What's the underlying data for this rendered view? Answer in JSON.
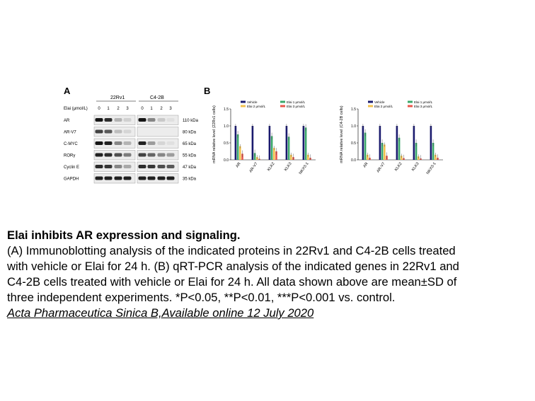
{
  "figure": {
    "panel_a": {
      "label": "A",
      "cell_lines": [
        "22Rv1",
        "C4-2B"
      ],
      "dose_header": "Elai (μmol/L)",
      "doses": [
        "0",
        "1",
        "2",
        "3"
      ],
      "proteins": [
        "AR",
        "AR-V7",
        "C-MYC",
        "RORγ",
        "Cyclin E",
        "GAPDH"
      ],
      "sizes": [
        "110 kDa",
        "80 kDa",
        "65 kDa",
        "55 kDa",
        "47 kDa",
        "35 kDa"
      ],
      "band_intensity_22rv1": [
        [
          0.95,
          0.85,
          0.25,
          0.12
        ],
        [
          0.75,
          0.65,
          0.2,
          0.1
        ],
        [
          0.95,
          0.9,
          0.45,
          0.25
        ],
        [
          0.9,
          0.85,
          0.7,
          0.5
        ],
        [
          0.85,
          0.8,
          0.45,
          0.3
        ],
        [
          0.9,
          0.9,
          0.9,
          0.9
        ]
      ],
      "band_intensity_c42b": [
        [
          0.95,
          0.45,
          0.15,
          0.05
        ],
        [
          0.0,
          0.0,
          0.0,
          0.0
        ],
        [
          0.9,
          0.35,
          0.1,
          0.05
        ],
        [
          0.75,
          0.6,
          0.45,
          0.35
        ],
        [
          0.85,
          0.8,
          0.7,
          0.65
        ],
        [
          0.9,
          0.9,
          0.9,
          0.9
        ]
      ]
    },
    "panel_b": {
      "label": "B",
      "legend": [
        "Vehicle",
        "Elai 1 μmol/L",
        "Elai 2 μmol/L",
        "Elai 3 μmol/L"
      ],
      "colors": [
        "#1a1a6e",
        "#3aa86a",
        "#f2c14e",
        "#e8564a"
      ]
    }
  },
  "chart_data": [
    {
      "type": "bar",
      "ylabel": "mRNA relative level (22Rv1 cells)",
      "ylim": [
        0,
        1.5
      ],
      "yticks": [
        "0.0",
        "0.5",
        "1.0",
        "1.5"
      ],
      "categories": [
        "AR",
        "AR-V7",
        "KLK2",
        "KLK3",
        "NKX3-1"
      ],
      "series": [
        {
          "name": "Vehicle",
          "values": [
            1.0,
            1.0,
            1.0,
            1.0,
            1.0
          ]
        },
        {
          "name": "Elai 1 μmol/L",
          "values": [
            0.75,
            0.2,
            0.7,
            0.68,
            0.95
          ]
        },
        {
          "name": "Elai 2 μmol/L",
          "values": [
            0.4,
            0.08,
            0.35,
            0.15,
            0.15
          ]
        },
        {
          "name": "Elai 3 μmol/L",
          "values": [
            0.18,
            0.03,
            0.25,
            0.08,
            0.06
          ]
        }
      ]
    },
    {
      "type": "bar",
      "ylabel": "mRNA relative level (C4-2B cells)",
      "ylim": [
        0,
        1.5
      ],
      "yticks": [
        "0.0",
        "0.5",
        "1.0",
        "1.5"
      ],
      "categories": [
        "AR",
        "AR-V7",
        "KLK2",
        "KLK3",
        "NKX3-1"
      ],
      "series": [
        {
          "name": "Vehicle",
          "values": [
            1.0,
            1.0,
            1.0,
            1.0,
            1.0
          ]
        },
        {
          "name": "Elai 1 μmol/L",
          "values": [
            0.8,
            0.5,
            0.65,
            0.5,
            0.5
          ]
        },
        {
          "name": "Elai 2 μmol/L",
          "values": [
            0.15,
            0.45,
            0.12,
            0.1,
            0.15
          ]
        },
        {
          "name": "Elai 3 μmol/L",
          "values": [
            0.06,
            0.12,
            0.05,
            0.04,
            0.06
          ]
        }
      ]
    }
  ],
  "caption": {
    "title": "Elai inhibits AR expression and signaling.",
    "lines": [
      "(A) Immunoblotting analysis of the indicated proteins in 22Rv1 and C4-2B cells treated",
      "with vehicle or Elai for 24 h. (B) qRT-PCR analysis of the indicated genes in 22Rv1 and",
      "C4-2B cells treated with vehicle or Elai for 24 h. All data shown above are mean±SD of",
      "three independent experiments. *P<0.05, **P<0.01, ***P<0.001 vs. control."
    ],
    "source": "Acta Pharmaceutica Sinica B,Available online 12 July 2020"
  }
}
